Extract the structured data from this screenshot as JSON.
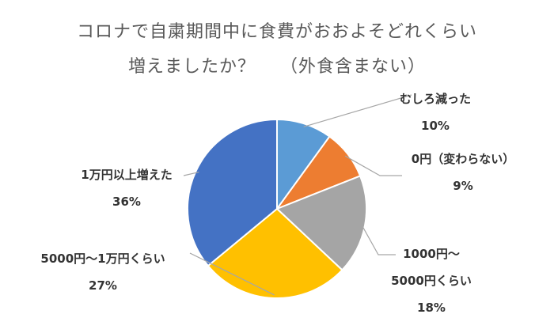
{
  "chart_data": {
    "type": "pie",
    "title_lines": [
      "コロナで自粛期間中に食費がおおよそどれくらい",
      "増えましたか？　 （外食含まない）"
    ],
    "slices": [
      {
        "label_lines": [
          "むしろ減った"
        ],
        "value": 10,
        "value_label": "10%",
        "color": "#5B9BD5"
      },
      {
        "label_lines": [
          "0円（変わらない）"
        ],
        "value": 9,
        "value_label": "9%",
        "color": "#ED7D31"
      },
      {
        "label_lines": [
          "1000円～",
          "5000円くらい"
        ],
        "value": 18,
        "value_label": "18%",
        "color": "#A5A5A5"
      },
      {
        "label_lines": [
          "5000円～1万円くらい"
        ],
        "value": 27,
        "value_label": "27%",
        "color": "#FFC000"
      },
      {
        "label_lines": [
          "1万円以上増えた"
        ],
        "value": 36,
        "value_label": "36%",
        "color": "#4472C4"
      }
    ],
    "start_angle": "12 o'clock",
    "direction": "clockwise",
    "legend": "none",
    "data_labels": "outside with leader lines"
  }
}
